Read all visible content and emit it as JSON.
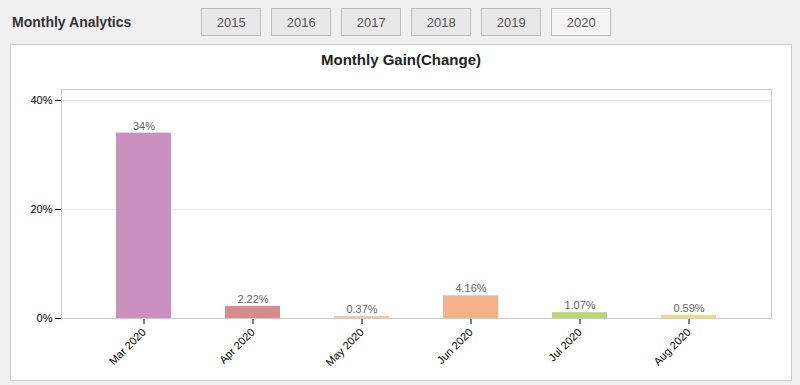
{
  "chart_data": {
    "type": "bar",
    "title": "Monthly Gain(Change)",
    "annotations": [
      "Monthly Analytics",
      "2015",
      "2016",
      "2017",
      "2018",
      "2019",
      "2020"
    ],
    "categories": [
      "Mar 2020",
      "Apr 2020",
      "May 2020",
      "Jun 2020",
      "Jul 2020",
      "Aug 2020"
    ],
    "values": [
      34.0,
      2.22,
      0.37,
      4.16,
      1.07,
      0.59
    ],
    "value_labels": [
      "34%",
      "2.22%",
      "0.37%",
      "4.16%",
      "1.07%",
      "0.59%"
    ],
    "colors": [
      "#c990c0",
      "#d98a8a",
      "#f5c6a0",
      "#f5b08a",
      "#bdd470",
      "#e8e080"
    ],
    "ylim": [
      0,
      42
    ],
    "yticks": [
      {
        "value": 0,
        "label": "0%"
      },
      {
        "value": 20,
        "label": "20%"
      },
      {
        "value": 40,
        "label": "40%"
      }
    ],
    "grid": true,
    "data_labels": true
  }
}
